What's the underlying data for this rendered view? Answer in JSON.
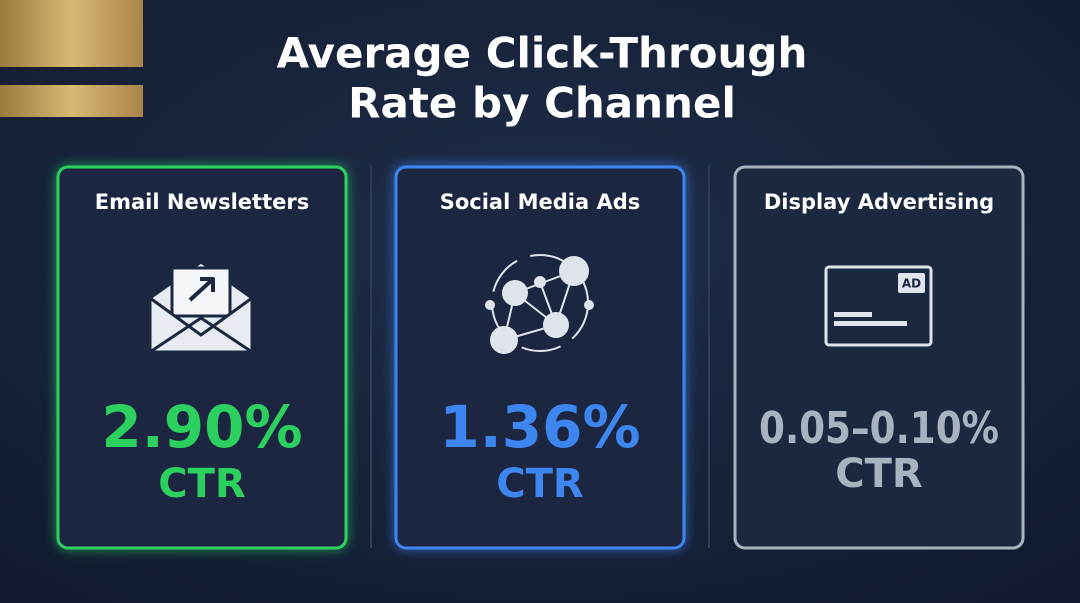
{
  "title": [
    "Average Click-Through",
    "Rate by Channel"
  ],
  "cards": [
    {
      "name": "Email Newsletters",
      "value": "2.90%",
      "unit": "CTR"
    },
    {
      "name": "Social Media Ads",
      "value": "1.36%",
      "unit": "CTR"
    },
    {
      "name": "Display Advertising",
      "value": "0.05–0.10%",
      "unit": "CTR"
    }
  ]
}
